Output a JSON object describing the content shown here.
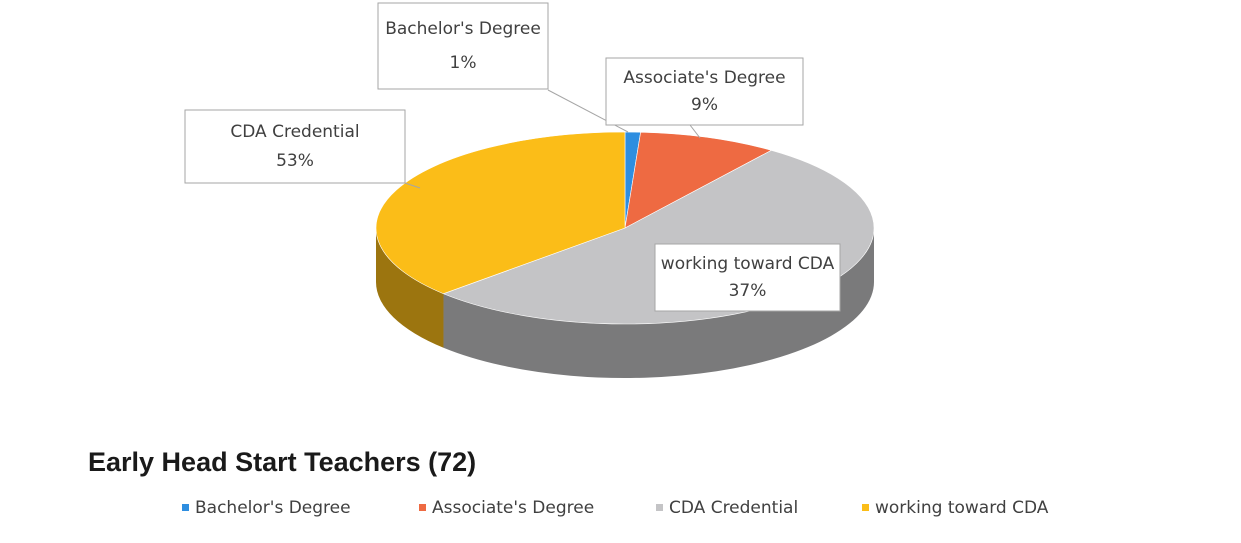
{
  "chart_data": {
    "type": "pie",
    "title": "Early Head Start Teachers (72)",
    "categories": [
      "Bachelor's Degree",
      "Associate's Degree",
      "CDA Credential",
      "working toward CDA"
    ],
    "values": [
      1,
      9,
      53,
      37
    ],
    "value_labels": [
      "1%",
      "9%",
      "53%",
      "37%"
    ],
    "colors": [
      "#2e8ee0",
      "#ee6a42",
      "#c4c4c6",
      "#fbbd18"
    ],
    "legend": "bottom"
  }
}
